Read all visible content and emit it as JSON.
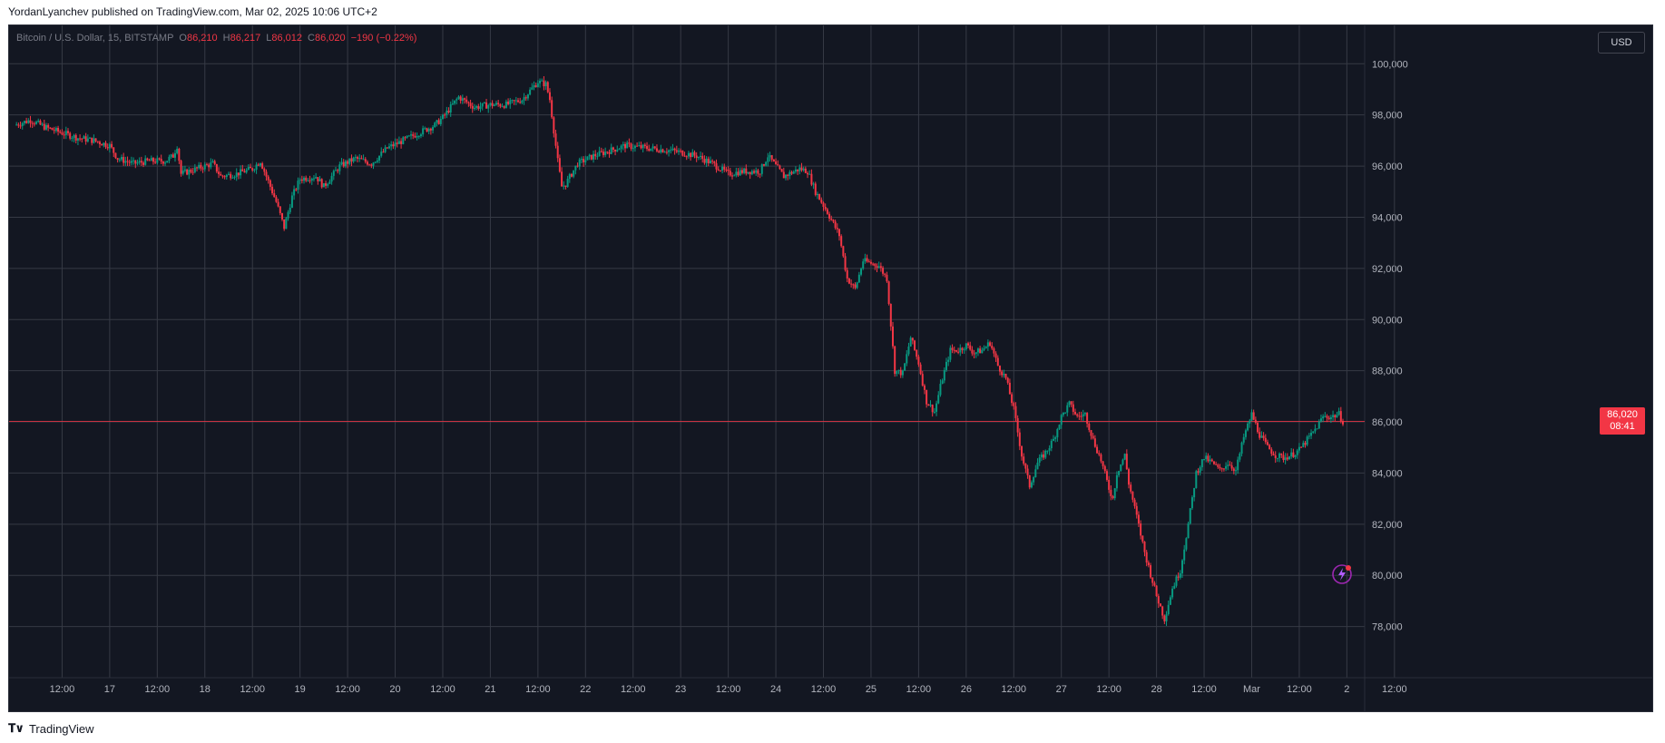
{
  "header": {
    "publish_text": "YordanLyanchev published on TradingView.com, Mar 02, 2025 10:06 UTC+2"
  },
  "legend": {
    "symbol": "Bitcoin / U.S. Dollar, 15, BITSTAMP",
    "o_label": "O",
    "o_value": "86,210",
    "h_label": "H",
    "h_value": "86,217",
    "l_label": "L",
    "l_value": "86,012",
    "c_label": "C",
    "c_value": "86,020",
    "change": "−190 (−0.22%)"
  },
  "currency_button": "USD",
  "last_price": {
    "value": "86,020",
    "countdown": "08:41"
  },
  "footer": {
    "brand": "TradingView"
  },
  "colors": {
    "background": "#131722",
    "grid": "#363a45",
    "up": "#089981",
    "down": "#f23645",
    "axis_text": "#b2b5be",
    "price_line": "#f23645"
  },
  "chart_data": {
    "type": "candlestick",
    "title": "Bitcoin / U.S. Dollar, 15, BITSTAMP",
    "ylim": [
      76000,
      101500
    ],
    "y_ticks": [
      78000,
      80000,
      82000,
      84000,
      86000,
      88000,
      90000,
      92000,
      94000,
      96000,
      98000,
      100000
    ],
    "y_tick_labels": [
      "78,000",
      "80,000",
      "82,000",
      "84,000",
      "86,000",
      "88,000",
      "90,000",
      "92,000",
      "94,000",
      "96,000",
      "98,000",
      "100,000"
    ],
    "x_tick_labels": [
      "12:00",
      "17",
      "12:00",
      "18",
      "12:00",
      "19",
      "12:00",
      "20",
      "12:00",
      "21",
      "12:00",
      "22",
      "12:00",
      "23",
      "12:00",
      "24",
      "12:00",
      "25",
      "12:00",
      "26",
      "12:00",
      "27",
      "12:00",
      "28",
      "12:00",
      "Mar",
      "12:00",
      "2",
      "12:00"
    ],
    "x_range_hours": [
      0,
      335
    ],
    "x_tick_hours": [
      12,
      24,
      36,
      48,
      60,
      72,
      84,
      96,
      108,
      120,
      132,
      144,
      156,
      168,
      180,
      192,
      204,
      216,
      228,
      240,
      252,
      264,
      276,
      288,
      300,
      312,
      324,
      336,
      348
    ],
    "last_price": 86020,
    "grid": true,
    "price_path": [
      [
        0,
        97600
      ],
      [
        4,
        97800
      ],
      [
        8,
        97500
      ],
      [
        12,
        97300
      ],
      [
        16,
        97100
      ],
      [
        20,
        97000
      ],
      [
        24,
        96800
      ],
      [
        26,
        96300
      ],
      [
        30,
        96100
      ],
      [
        34,
        96200
      ],
      [
        38,
        96200
      ],
      [
        40,
        96400
      ],
      [
        41,
        96800
      ],
      [
        42,
        95700
      ],
      [
        46,
        95900
      ],
      [
        50,
        96100
      ],
      [
        52,
        95600
      ],
      [
        56,
        95700
      ],
      [
        60,
        95900
      ],
      [
        62,
        96200
      ],
      [
        64,
        95400
      ],
      [
        66,
        94600
      ],
      [
        68,
        93600
      ],
      [
        70,
        94800
      ],
      [
        72,
        95500
      ],
      [
        76,
        95600
      ],
      [
        78,
        95200
      ],
      [
        82,
        96000
      ],
      [
        86,
        96300
      ],
      [
        90,
        96100
      ],
      [
        94,
        96700
      ],
      [
        98,
        97000
      ],
      [
        102,
        97300
      ],
      [
        106,
        97600
      ],
      [
        108,
        97900
      ],
      [
        110,
        98300
      ],
      [
        112,
        98700
      ],
      [
        116,
        98300
      ],
      [
        120,
        98400
      ],
      [
        124,
        98400
      ],
      [
        128,
        98600
      ],
      [
        132,
        99300
      ],
      [
        134,
        99200
      ],
      [
        135,
        98600
      ],
      [
        136,
        97400
      ],
      [
        137,
        96200
      ],
      [
        138,
        95200
      ],
      [
        139,
        95300
      ],
      [
        142,
        96100
      ],
      [
        146,
        96400
      ],
      [
        150,
        96600
      ],
      [
        154,
        96800
      ],
      [
        160,
        96700
      ],
      [
        166,
        96600
      ],
      [
        172,
        96400
      ],
      [
        176,
        96100
      ],
      [
        180,
        95700
      ],
      [
        184,
        95800
      ],
      [
        188,
        95800
      ],
      [
        190,
        96400
      ],
      [
        192,
        96000
      ],
      [
        194,
        95600
      ],
      [
        198,
        95900
      ],
      [
        200,
        95800
      ],
      [
        202,
        95000
      ],
      [
        205,
        94200
      ],
      [
        208,
        93300
      ],
      [
        210,
        91600
      ],
      [
        212,
        91200
      ],
      [
        214,
        92300
      ],
      [
        218,
        92100
      ],
      [
        220,
        91600
      ],
      [
        221,
        89800
      ],
      [
        222,
        88000
      ],
      [
        224,
        87900
      ],
      [
        226,
        89300
      ],
      [
        228,
        88300
      ],
      [
        230,
        86800
      ],
      [
        232,
        86400
      ],
      [
        234,
        87700
      ],
      [
        236,
        88800
      ],
      [
        238,
        88800
      ],
      [
        240,
        89000
      ],
      [
        242,
        88700
      ],
      [
        244,
        88800
      ],
      [
        246,
        89100
      ],
      [
        248,
        88200
      ],
      [
        250,
        87700
      ],
      [
        252,
        86500
      ],
      [
        254,
        84700
      ],
      [
        256,
        83500
      ],
      [
        258,
        84400
      ],
      [
        260,
        84800
      ],
      [
        262,
        85300
      ],
      [
        264,
        86200
      ],
      [
        266,
        86700
      ],
      [
        268,
        86200
      ],
      [
        270,
        86300
      ],
      [
        272,
        85300
      ],
      [
        274,
        84500
      ],
      [
        276,
        83400
      ],
      [
        277,
        83000
      ],
      [
        278,
        84000
      ],
      [
        280,
        84700
      ],
      [
        281,
        83600
      ],
      [
        283,
        82300
      ],
      [
        285,
        80900
      ],
      [
        288,
        79200
      ],
      [
        290,
        78300
      ],
      [
        292,
        79500
      ],
      [
        294,
        80200
      ],
      [
        296,
        82000
      ],
      [
        298,
        84000
      ],
      [
        300,
        84600
      ],
      [
        302,
        84400
      ],
      [
        304,
        84100
      ],
      [
        306,
        84400
      ],
      [
        308,
        84100
      ],
      [
        310,
        85400
      ],
      [
        312,
        86300
      ],
      [
        314,
        85500
      ],
      [
        316,
        85000
      ],
      [
        318,
        84700
      ],
      [
        320,
        84600
      ],
      [
        322,
        84700
      ],
      [
        324,
        84900
      ],
      [
        328,
        85700
      ],
      [
        330,
        86200
      ],
      [
        332,
        86200
      ],
      [
        334,
        86300
      ],
      [
        335,
        86020
      ]
    ]
  }
}
